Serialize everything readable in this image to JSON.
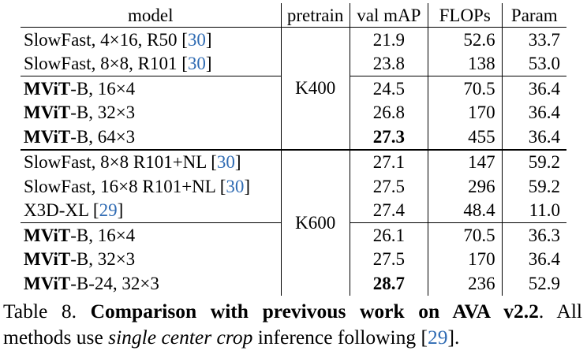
{
  "headers": {
    "model": "model",
    "pretrain": "pretrain",
    "val_map": "val mAP",
    "flops": "FLOPs",
    "param": "Param"
  },
  "groups": [
    {
      "pretrain": "K400",
      "rows": [
        {
          "name_bold": "",
          "name_rest": "SlowFast, 4×16, R50 [",
          "ref": "30",
          "name_end": "]",
          "map": "21.9",
          "map_bold": false,
          "flops": "52.6",
          "param": "33.7"
        },
        {
          "name_bold": "",
          "name_rest": "SlowFast, 8×8, R101 [",
          "ref": "30",
          "name_end": "]",
          "map": "23.8",
          "map_bold": false,
          "flops": "138",
          "param": "53.0"
        },
        {
          "name_bold": "MViT",
          "name_rest": "-B, 16×4",
          "ref": "",
          "name_end": "",
          "map": "24.5",
          "map_bold": false,
          "flops": "70.5",
          "param": "36.4"
        },
        {
          "name_bold": "MViT",
          "name_rest": "-B, 32×3",
          "ref": "",
          "name_end": "",
          "map": "26.8",
          "map_bold": false,
          "flops": "170",
          "param": "36.4"
        },
        {
          "name_bold": "MViT",
          "name_rest": "-B, 64×3",
          "ref": "",
          "name_end": "",
          "map": "27.3",
          "map_bold": true,
          "flops": "455",
          "param": "36.4"
        }
      ]
    },
    {
      "pretrain": "K600",
      "rows": [
        {
          "name_bold": "",
          "name_rest": "SlowFast, 8×8 R101+NL [",
          "ref": "30",
          "name_end": "]",
          "map": "27.1",
          "map_bold": false,
          "flops": "147",
          "param": "59.2"
        },
        {
          "name_bold": "",
          "name_rest": "SlowFast, 16×8 R101+NL [",
          "ref": "30",
          "name_end": "]",
          "map": "27.5",
          "map_bold": false,
          "flops": "296",
          "param": "59.2"
        },
        {
          "name_bold": "",
          "name_rest": "X3D-XL [",
          "ref": "29",
          "name_end": "]",
          "map": "27.4",
          "map_bold": false,
          "flops": "48.4",
          "param": "11.0"
        },
        {
          "name_bold": "MViT",
          "name_rest": "-B, 16×4",
          "ref": "",
          "name_end": "",
          "map": "26.1",
          "map_bold": false,
          "flops": "70.5",
          "param": "36.3"
        },
        {
          "name_bold": "MViT",
          "name_rest": "-B, 32×3",
          "ref": "",
          "name_end": "",
          "map": "27.5",
          "map_bold": false,
          "flops": "170",
          "param": "36.4"
        },
        {
          "name_bold": "MViT",
          "name_rest": "-B-24, 32×3",
          "ref": "",
          "name_end": "",
          "map": "28.7",
          "map_bold": true,
          "flops": "236",
          "param": "52.9"
        }
      ]
    }
  ],
  "caption": {
    "label": "Table 8.",
    "title": "Comparison with previvous work on AVA v2.2",
    "line1_tail": ".  All",
    "line2_pre": "methods use ",
    "line2_italic": "single center crop",
    "line2_mid": " inference following [",
    "line2_ref": "29",
    "line2_end": "]."
  }
}
